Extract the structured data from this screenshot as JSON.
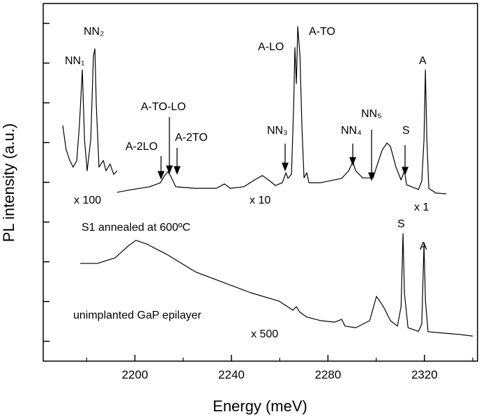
{
  "chart_data": {
    "type": "line",
    "x_label": "Energy (meV)",
    "y_label": "PL intensity (a.u.)",
    "xlim": [
      2162,
      2342
    ],
    "ylim": [
      0,
      9
    ],
    "xticks": [
      2200,
      2240,
      2280,
      2320
    ],
    "xticks_minor": [
      2180,
      2220,
      2260,
      2300,
      2340
    ],
    "yticks": [
      0.5,
      1.5,
      2.5,
      3.5,
      4.5,
      5.5,
      6.5,
      7.5,
      8.5
    ],
    "series": [
      {
        "color": "#000000",
        "x": [
          2170.1,
          2171.5,
          2173.0,
          2174.4,
          2175.9,
          2177.0,
          2178.2,
          2179.1,
          2180.2,
          2181.7,
          2182.8,
          2183.4,
          2184.0,
          2185.1,
          2186.9,
          2188.0,
          2189.7,
          2191.2,
          2192.6
        ],
        "values": [
          5.93,
          5.32,
          5.05,
          4.88,
          5.05,
          5.93,
          7.33,
          5.58,
          4.79,
          5.58,
          7.68,
          7.86,
          6.46,
          4.88,
          5.05,
          4.79,
          4.96,
          4.7,
          4.79
        ]
      },
      {
        "color": "#000000",
        "x": [
          2192.6,
          2199.0,
          2206.2,
          2210.6,
          2212.3,
          2213.7,
          2215.2,
          2216.9,
          2225.0,
          2233.7,
          2237.1,
          2239.5,
          2245.2,
          2249.6,
          2252.8,
          2255.4,
          2258.2,
          2261.1,
          2262.6,
          2263.4,
          2264.9,
          2265.8,
          2266.3,
          2266.9,
          2267.5,
          2268.4,
          2269.2,
          2270.1,
          2271.2,
          2272.1,
          2277.0,
          2285.7,
          2288.6,
          2290.3,
          2291.5,
          2294.4,
          2298.7,
          2300.1,
          2302.5,
          2304.5,
          2305.9,
          2308.2,
          2310.3,
          2311.7,
          2312.6,
          2314.6
        ],
        "values": [
          4.25,
          4.32,
          4.39,
          4.49,
          4.67,
          4.77,
          4.61,
          4.39,
          4.35,
          4.35,
          4.46,
          4.35,
          4.39,
          4.56,
          4.67,
          4.56,
          4.42,
          4.49,
          4.74,
          4.6,
          4.7,
          6.46,
          7.89,
          6.98,
          8.42,
          7.68,
          5.93,
          4.61,
          4.74,
          4.49,
          4.49,
          4.6,
          4.79,
          5.02,
          4.79,
          4.61,
          4.61,
          4.88,
          5.32,
          5.49,
          5.4,
          4.88,
          4.56,
          4.79,
          4.44,
          4.39
        ]
      },
      {
        "color": "#000000",
        "x": [
          2314.6,
          2317.5,
          2318.9,
          2319.8,
          2320.4,
          2321.0,
          2321.8,
          2324.7,
          2329.0
        ],
        "values": [
          4.39,
          4.32,
          4.53,
          5.58,
          7.33,
          5.58,
          4.35,
          4.23,
          4.21
        ]
      },
      {
        "color": "#000000",
        "x": [
          2177.3,
          2184.5,
          2191.8,
          2197.5,
          2200.4,
          2204.8,
          2213.4,
          2225.0,
          2236.6,
          2248.1,
          2259.7,
          2265.5,
          2266.9,
          2268.4,
          2271.2,
          2277.0,
          2282.8,
          2285.7,
          2287.1,
          2291.5,
          2297.3,
          2300.1,
          2303.0,
          2305.9,
          2308.8,
          2310.3,
          2311.1,
          2311.7,
          2313.2,
          2317.5,
          2318.9,
          2319.8,
          2320.4,
          2321.5,
          2329.0,
          2334.8,
          2340.0
        ],
        "values": [
          2.46,
          2.46,
          2.6,
          2.91,
          3.04,
          2.95,
          2.68,
          2.25,
          1.98,
          1.72,
          1.51,
          1.28,
          1.37,
          1.23,
          1.11,
          1.02,
          0.98,
          1.05,
          0.88,
          0.84,
          1.02,
          1.63,
          1.37,
          1.02,
          0.88,
          1.37,
          3.21,
          1.72,
          0.84,
          0.75,
          0.93,
          2.95,
          1.54,
          0.74,
          0.7,
          0.67,
          0.63
        ]
      }
    ],
    "annotations": [
      "NN₁",
      "NN₂",
      "A-TO-LO",
      "A-2LO",
      "A-2TO",
      "NN₃",
      "A-LO",
      "A-TO",
      "NN₄",
      "NN₅",
      "S",
      "A",
      "x 100",
      "x 10",
      "x 1",
      "S1 annealed at 600ºC",
      "S",
      "A",
      "unimplanted GaP epilayer",
      "x 500"
    ]
  }
}
